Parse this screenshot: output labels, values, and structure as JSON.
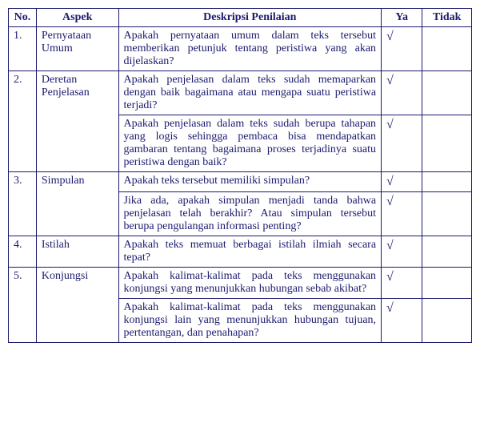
{
  "headers": {
    "no": "No.",
    "aspek": "Aspek",
    "deskripsi": "Deskripsi Penilaian",
    "ya": "Ya",
    "tidak": "Tidak"
  },
  "check_mark": "√",
  "rows": [
    {
      "no": "1.",
      "aspek": "Pernyataan Umum",
      "items": [
        {
          "desc": "Apakah pernyataan umum dalam teks tersebut memberikan petunjuk tentang peristiwa yang akan dijelaskan?",
          "ya": "√",
          "tidak": ""
        }
      ]
    },
    {
      "no": "2.",
      "aspek": "Deretan Penjelasan",
      "items": [
        {
          "desc": "Apakah penjelasan dalam teks sudah memaparkan dengan baik bagaimana atau mengapa suatu peristiwa terjadi?",
          "ya": "√",
          "tidak": ""
        },
        {
          "desc": "Apakah penjelasan dalam teks sudah berupa tahapan yang logis sehingga pembaca bisa mendapatkan gambaran tentang bagaimana proses terjadinya suatu peristiwa dengan baik?",
          "ya": "√",
          "tidak": ""
        }
      ]
    },
    {
      "no": "3.",
      "aspek": "Simpulan",
      "items": [
        {
          "desc": "Apakah teks tersebut memiliki simpulan?",
          "ya": "√",
          "tidak": ""
        },
        {
          "desc": "Jika ada, apakah simpulan menjadi tanda bahwa penjelasan telah berakhir? Atau simpulan tersebut berupa pengulangan informasi penting?",
          "ya": "√",
          "tidak": ""
        }
      ]
    },
    {
      "no": "4.",
      "aspek": "Istilah",
      "items": [
        {
          "desc": "Apakah teks memuat berbagai istilah ilmiah secara tepat?",
          "ya": "√",
          "tidak": ""
        }
      ]
    },
    {
      "no": "5.",
      "aspek": "Konjungsi",
      "items": [
        {
          "desc": "Apakah kalimat-kalimat pada teks menggunakan konjungsi yang menunjukkan hubungan sebab akibat?",
          "ya": "√",
          "tidak": ""
        },
        {
          "desc": "Apakah kalimat-kalimat pada teks menggunakan konjungsi lain yang menunjukkan hubungan tujuan, pertentangan, dan penahapan?",
          "ya": "√",
          "tidak": ""
        }
      ]
    }
  ]
}
